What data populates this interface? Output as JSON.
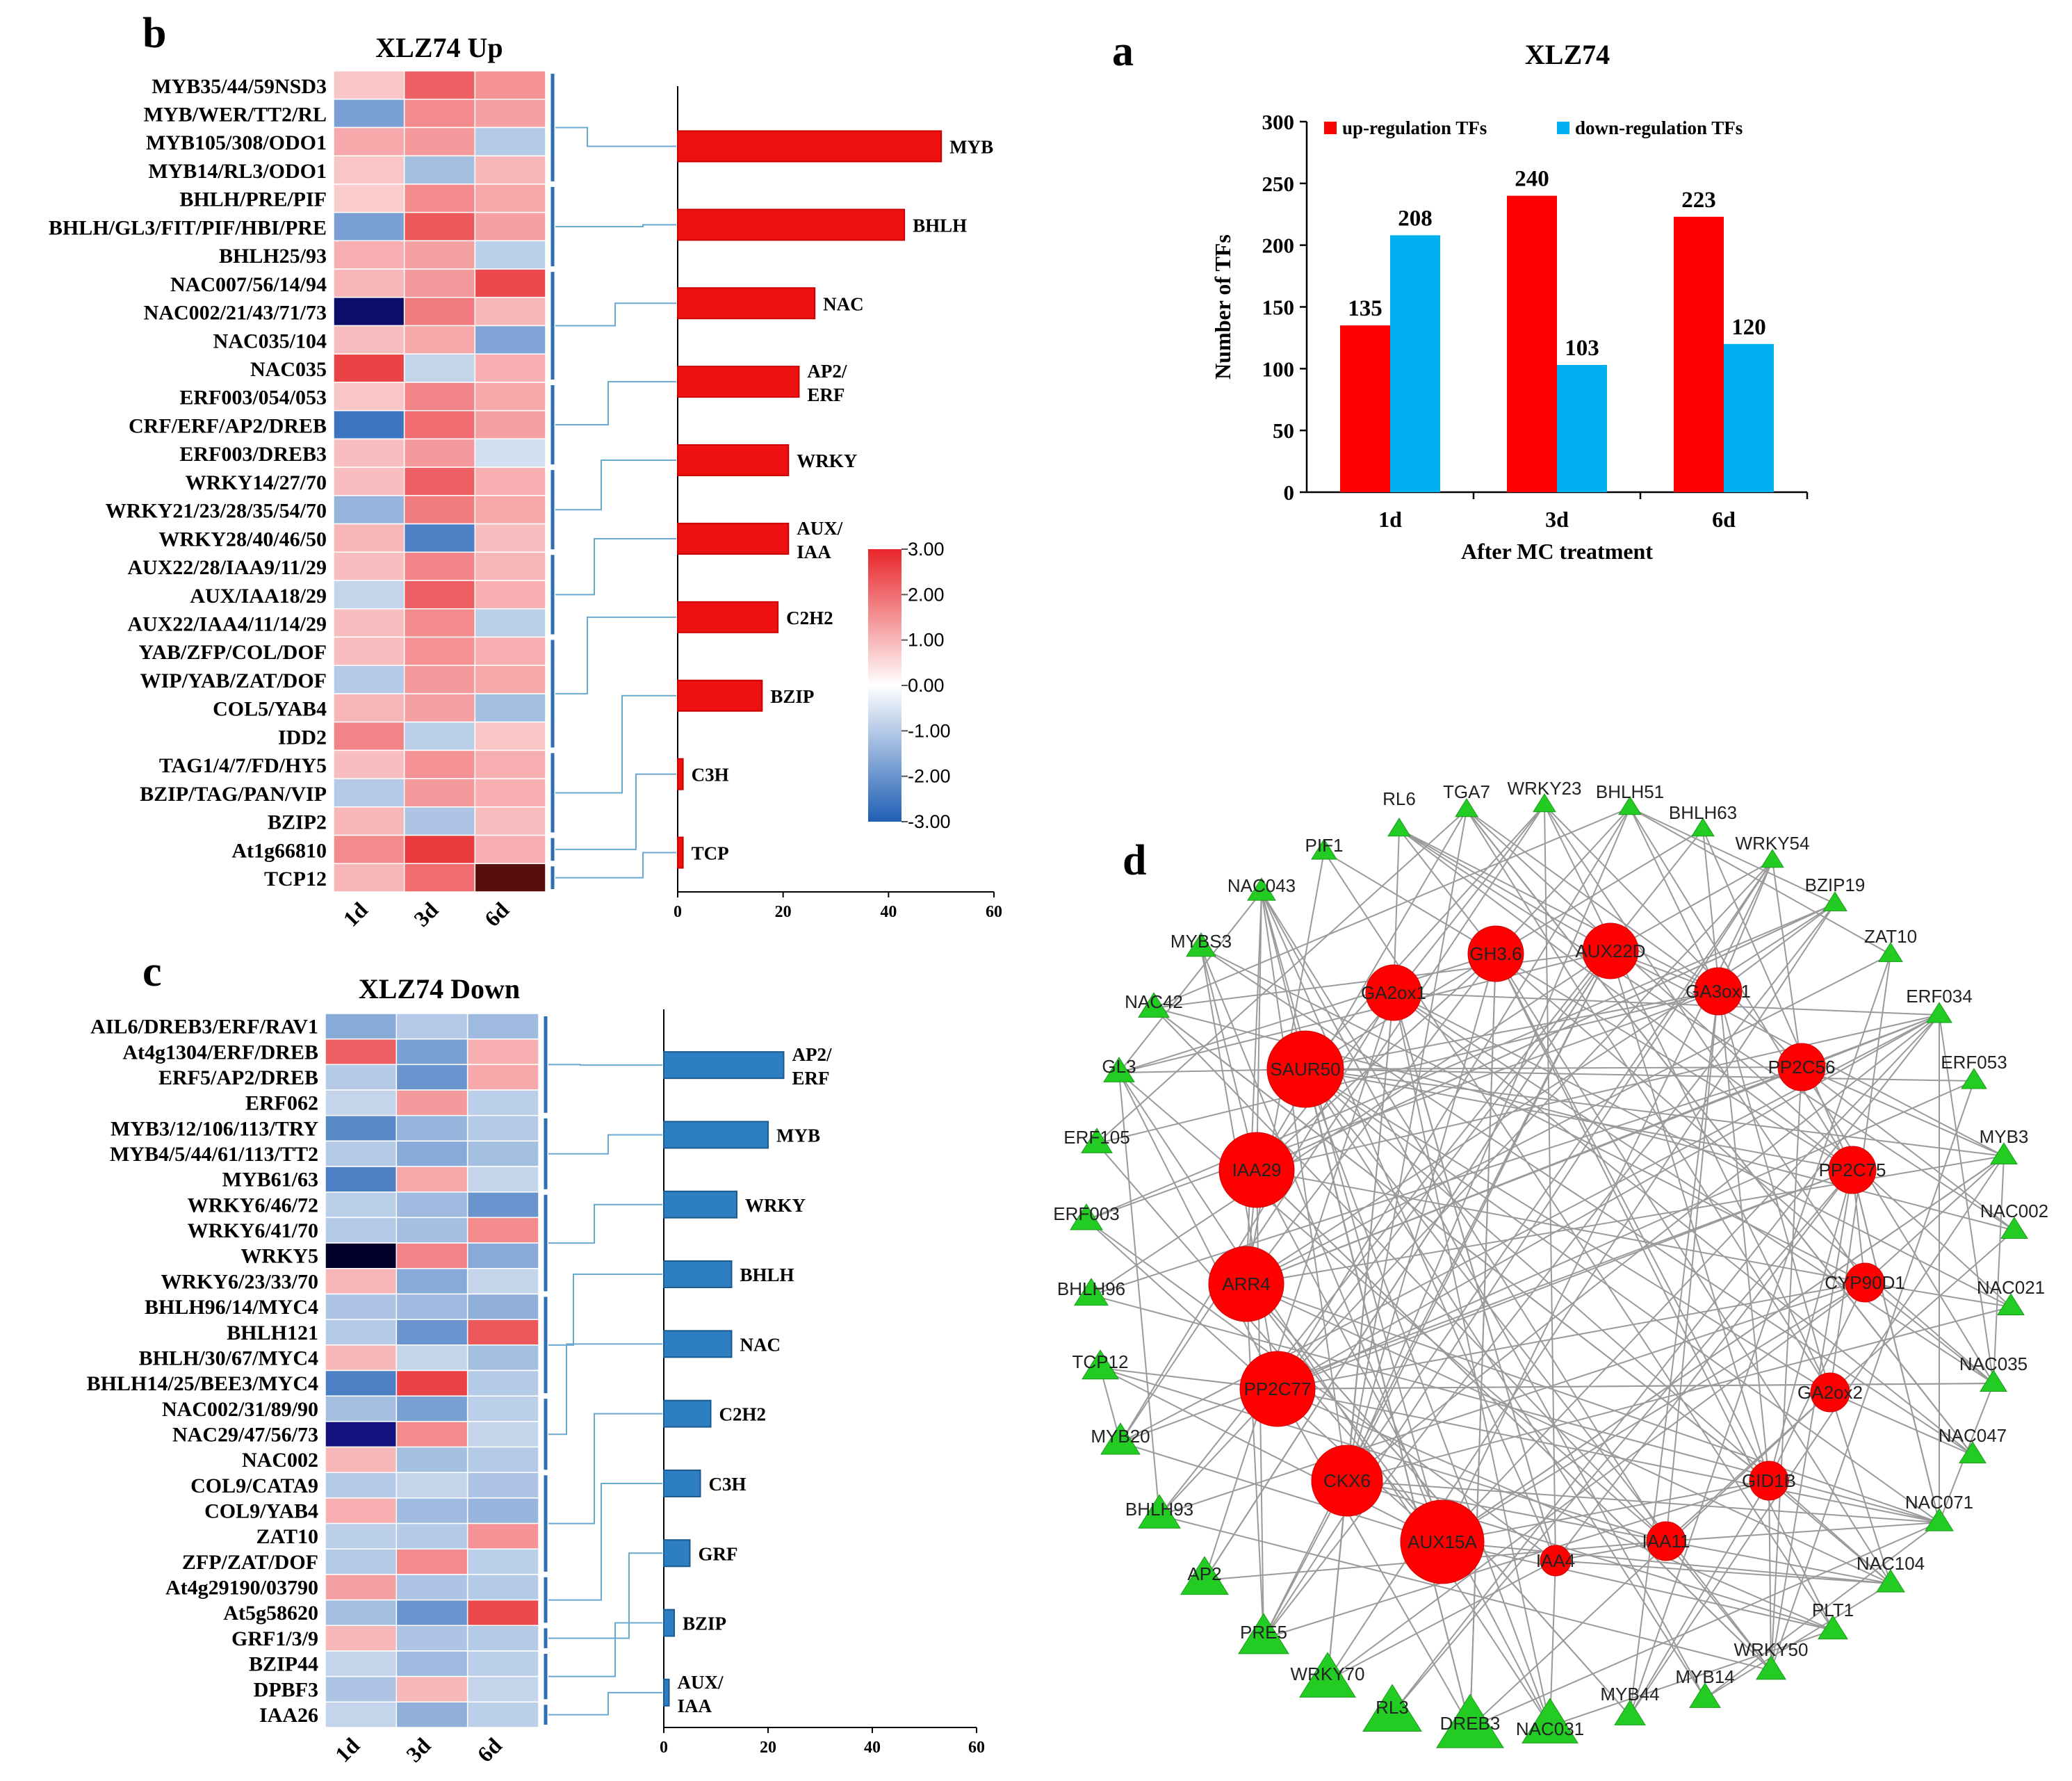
{
  "chart_data": [
    {
      "panel": "b",
      "type": "heatmap",
      "title": "XLZ74 Up",
      "columns": [
        "1d",
        "3d",
        "6d"
      ],
      "rows": [
        {
          "label": "MYB35/44/59NSD3",
          "values": [
            0.8,
            2.2,
            1.5
          ]
        },
        {
          "label": "MYB/WER/TT2/RL",
          "values": [
            -1.8,
            1.6,
            1.3
          ]
        },
        {
          "label": "MYB105/308/ODO1",
          "values": [
            1.2,
            1.4,
            -1.0
          ]
        },
        {
          "label": "MYB14/RL3/ODO1",
          "values": [
            0.8,
            -1.2,
            1.0
          ]
        },
        {
          "label": "BHLH/PRE/PIF",
          "values": [
            0.7,
            1.6,
            1.2
          ]
        },
        {
          "label": "BHLH/GL3/FIT/PIF/HBI/PRE",
          "values": [
            -1.8,
            2.3,
            1.3
          ]
        },
        {
          "label": "BHLH25/93",
          "values": [
            1.1,
            1.3,
            -0.9
          ]
        },
        {
          "label": "NAC007/56/14/94",
          "values": [
            1.0,
            1.4,
            2.5
          ]
        },
        {
          "label": "NAC002/21/43/71/73",
          "values": [
            -3.8,
            1.8,
            1.0
          ]
        },
        {
          "label": "NAC035/104",
          "values": [
            0.9,
            1.2,
            -1.7
          ]
        },
        {
          "label": "NAC035",
          "values": [
            2.6,
            -0.8,
            1.1
          ]
        },
        {
          "label": "ERF003/054/053",
          "values": [
            0.8,
            1.7,
            1.2
          ]
        },
        {
          "label": "CRF/ERF/AP2/DREB",
          "values": [
            -2.6,
            2.0,
            1.3
          ]
        },
        {
          "label": "ERF003/DREB3",
          "values": [
            0.9,
            1.4,
            -0.6
          ]
        },
        {
          "label": "WRKY14/27/70",
          "values": [
            0.9,
            2.2,
            1.1
          ]
        },
        {
          "label": "WRKY21/23/28/35/54/70",
          "values": [
            -1.4,
            1.8,
            1.2
          ]
        },
        {
          "label": "WRKY28/40/46/50",
          "values": [
            1.0,
            -2.4,
            0.9
          ]
        },
        {
          "label": "AUX22/28/IAA9/11/29",
          "values": [
            0.9,
            1.7,
            1.0
          ]
        },
        {
          "label": "AUX/IAA18/29",
          "values": [
            -0.8,
            2.2,
            1.1
          ]
        },
        {
          "label": "AUX22/IAA4/11/14/29",
          "values": [
            0.9,
            1.6,
            -0.9
          ]
        },
        {
          "label": "YAB/ZFP/COL/DOF",
          "values": [
            0.9,
            1.5,
            1.1
          ]
        },
        {
          "label": "WIP/YAB/ZAT/DOF",
          "values": [
            -1.0,
            1.4,
            1.2
          ]
        },
        {
          "label": "COL5/YAB4",
          "values": [
            1.0,
            1.3,
            -1.2
          ]
        },
        {
          "label": "IDD2",
          "values": [
            1.7,
            -0.9,
            0.8
          ]
        },
        {
          "label": "TAG1/4/7/FD/HY5",
          "values": [
            0.9,
            1.5,
            1.1
          ]
        },
        {
          "label": "BZIP/TAG/PAN/VIP",
          "values": [
            -1.0,
            1.4,
            1.1
          ]
        },
        {
          "label": "BZIP2",
          "values": [
            1.0,
            -1.1,
            0.9
          ]
        },
        {
          "label": "At1g66810",
          "values": [
            1.6,
            2.7,
            1.1
          ]
        },
        {
          "label": "TCP12",
          "values": [
            1.0,
            2.0,
            3.6
          ]
        }
      ],
      "colorbar": {
        "min": -3.0,
        "max": 3.0,
        "ticks": [
          "3.00",
          "2.00",
          "1.00",
          "0.00",
          "-1.00",
          "-2.00",
          "-3.00"
        ]
      },
      "family_bars": {
        "categories": [
          "MYB",
          "BHLH",
          "NAC",
          "AP2/ ERF",
          "WRKY",
          "AUX/ IAA",
          "C2H2",
          "BZIP",
          "C3H",
          "TCP"
        ],
        "values": [
          50,
          43,
          26,
          23,
          21,
          21,
          19,
          16,
          1,
          1
        ],
        "xlim": [
          0,
          60
        ],
        "xticks": [
          "0",
          "20",
          "40",
          "60"
        ],
        "color": "#ee1111"
      }
    },
    {
      "panel": "c",
      "type": "heatmap",
      "title": "XLZ74 Down",
      "columns": [
        "1d",
        "3d",
        "6d"
      ],
      "rows": [
        {
          "label": "AIL6/DREB3/ERF/RAV1",
          "values": [
            -1.6,
            -1.0,
            -1.3
          ]
        },
        {
          "label": "At4g1304/ERF/DREB",
          "values": [
            2.2,
            -1.8,
            1.1
          ]
        },
        {
          "label": "ERF5/AP2/DREB",
          "values": [
            -1.0,
            -2.0,
            1.2
          ]
        },
        {
          "label": "ERF062",
          "values": [
            -0.8,
            1.4,
            -0.9
          ]
        },
        {
          "label": "MYB3/12/106/113/TRY",
          "values": [
            -2.2,
            -1.4,
            -1.0
          ]
        },
        {
          "label": "MYB4/5/44/61/113/TT2",
          "values": [
            -1.0,
            -1.6,
            -1.2
          ]
        },
        {
          "label": "MYB61/63",
          "values": [
            -2.4,
            1.2,
            -0.8
          ]
        },
        {
          "label": "WRKY6/46/72",
          "values": [
            -0.9,
            -1.3,
            -2.0
          ]
        },
        {
          "label": "WRKY6/41/70",
          "values": [
            -1.0,
            -1.2,
            1.6
          ]
        },
        {
          "label": "WRKY5",
          "values": [
            -4.5,
            1.7,
            -1.6
          ]
        },
        {
          "label": "WRKY6/23/33/70",
          "values": [
            1.0,
            -1.6,
            -0.8
          ]
        },
        {
          "label": "BHLH96/14/MYC4",
          "values": [
            -1.1,
            -1.3,
            -1.5
          ]
        },
        {
          "label": "BHLH121",
          "values": [
            -1.0,
            -2.0,
            2.3
          ]
        },
        {
          "label": "BHLH/30/67/MYC4",
          "values": [
            1.0,
            -0.8,
            -1.2
          ]
        },
        {
          "label": "BHLH14/25/BEE3/MYC4",
          "values": [
            -2.4,
            2.6,
            -1.0
          ]
        },
        {
          "label": "NAC002/31/89/90",
          "values": [
            -1.2,
            -1.8,
            -0.9
          ]
        },
        {
          "label": "NAC29/47/56/73",
          "values": [
            -3.6,
            1.6,
            -0.8
          ]
        },
        {
          "label": "NAC002",
          "values": [
            1.0,
            -1.2,
            -1.0
          ]
        },
        {
          "label": "COL9/CATA9",
          "values": [
            -1.0,
            -0.8,
            -1.1
          ]
        },
        {
          "label": "COL9/YAB4",
          "values": [
            1.1,
            -1.3,
            -1.4
          ]
        },
        {
          "label": "ZAT10",
          "values": [
            -0.9,
            -1.0,
            1.5
          ]
        },
        {
          "label": "ZFP/ZAT/DOF",
          "values": [
            -1.0,
            1.6,
            -0.9
          ]
        },
        {
          "label": "At4g29190/03790",
          "values": [
            1.3,
            -1.1,
            -1.0
          ]
        },
        {
          "label": "At5g58620",
          "values": [
            -1.2,
            -2.0,
            2.5
          ]
        },
        {
          "label": "GRF1/3/9",
          "values": [
            1.0,
            -1.1,
            -1.0
          ]
        },
        {
          "label": "BZIP44",
          "values": [
            -0.8,
            -1.3,
            -0.9
          ]
        },
        {
          "label": "DPBF3",
          "values": [
            -1.1,
            1.0,
            -0.8
          ]
        },
        {
          "label": "IAA26",
          "values": [
            -0.8,
            -1.5,
            -0.9
          ]
        }
      ],
      "family_bars": {
        "categories": [
          "AP2/ ERF",
          "MYB",
          "WRKY",
          "BHLH",
          "NAC",
          "C2H2",
          "C3H",
          "GRF",
          "BZIP",
          "AUX/ IAA"
        ],
        "values": [
          23,
          20,
          14,
          13,
          13,
          9,
          7,
          5,
          2,
          1
        ],
        "xlim": [
          0,
          60
        ],
        "xticks": [
          "0",
          "20",
          "40",
          "60"
        ],
        "color": "#2e7fc2"
      }
    },
    {
      "panel": "a",
      "type": "bar",
      "title": "XLZ74",
      "categories": [
        "1d",
        "3d",
        "6d"
      ],
      "series": [
        {
          "name": "up-regulation TFs",
          "values": [
            135,
            240,
            223
          ],
          "color": "#ff0000"
        },
        {
          "name": "down-regulation TFs",
          "values": [
            208,
            103,
            120
          ],
          "color": "#00b0f0"
        }
      ],
      "xlabel": "After MC treatment",
      "ylabel": "Number of TFs",
      "ylim": [
        0,
        300
      ],
      "yticks": [
        "0",
        "50",
        "100",
        "150",
        "200",
        "250",
        "300"
      ]
    },
    {
      "panel": "d",
      "type": "network",
      "hub_nodes": [
        "SAUR50",
        "IAA29",
        "ARR4",
        "PP2C77",
        "CKX6",
        "AUX15A",
        "GA2ox1",
        "GH3.6",
        "AUX22D",
        "GA3ox1",
        "PP2C56",
        "PP2C75",
        "CYP90D1",
        "GA2ox2",
        "GID1B",
        "IAA11",
        "IAA4"
      ],
      "tf_nodes": [
        "RL6",
        "TGA7",
        "WRKY23",
        "BHLH51",
        "BHLH63",
        "WRKY54",
        "BZIP19",
        "ZAT10",
        "ERF034",
        "ERF053",
        "MYB3",
        "NAC002",
        "NAC021",
        "NAC035",
        "NAC047",
        "NAC071",
        "NAC104",
        "PLT1",
        "WRKY50",
        "MYB14",
        "MYB44",
        "NAC031",
        "DREB3",
        "RL3",
        "WRKY70",
        "PRE5",
        "AP2",
        "BHLH93",
        "MYB20",
        "TCP12",
        "BHLH96",
        "ERF003",
        "ERF105",
        "GL3",
        "NAC42",
        "MYBS3",
        "NAC043",
        "PIF1"
      ]
    }
  ]
}
